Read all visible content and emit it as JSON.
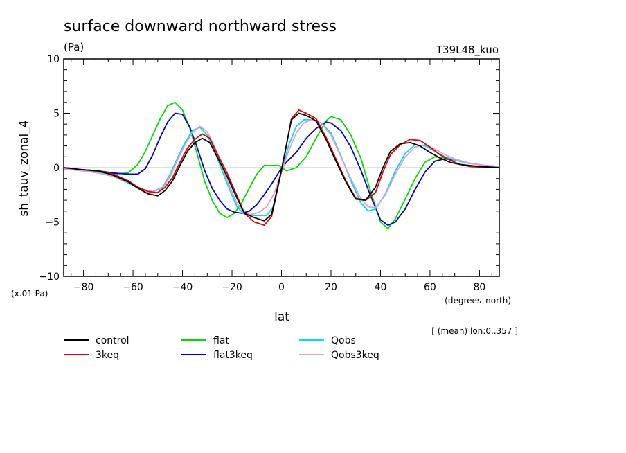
{
  "chart_data": {
    "type": "line",
    "title": "surface downward northward stress",
    "units": "(Pa)",
    "experiment": "T39L48_kuo",
    "ylabel": "sh_tauv_zonal_4",
    "y_scale_note": "(x.01 Pa)",
    "xlabel": "lat",
    "xunits": "(degrees_north)",
    "averaging_note": "[ (mean) lon:0..357 ]",
    "xlim": [
      -88,
      88
    ],
    "ylim": [
      -10,
      10
    ],
    "x_ticks": [
      -80,
      -60,
      -40,
      -20,
      0,
      20,
      40,
      60,
      80
    ],
    "x_tick_labels": [
      "−80",
      "−60",
      "−40",
      "−20",
      "0",
      "20",
      "40",
      "60",
      "80"
    ],
    "y_ticks": [
      -10,
      -5,
      0,
      5,
      10
    ],
    "y_tick_labels": [
      "−10",
      "−5",
      "0",
      "5",
      "10"
    ],
    "series": [
      {
        "name": "control",
        "color": "#000000",
        "x": [
          -88,
          -80,
          -74,
          -68,
          -62,
          -58,
          -54,
          -50,
          -47,
          -44,
          -41,
          -38,
          -35,
          -32,
          -29,
          -26,
          -22,
          -18,
          -15,
          -11,
          -7,
          -4,
          0,
          4,
          7,
          10,
          14,
          18,
          22,
          26,
          30,
          34,
          38,
          41,
          44,
          48,
          52,
          56,
          60,
          64,
          68,
          72,
          76,
          80,
          84,
          88
        ],
        "y": [
          0,
          -0.2,
          -0.3,
          -0.7,
          -1.3,
          -1.9,
          -2.4,
          -2.6,
          -2.1,
          -1.2,
          0.2,
          1.5,
          2.3,
          2.7,
          2.3,
          1.0,
          -0.8,
          -2.8,
          -4.2,
          -4.6,
          -4.9,
          -4.3,
          -0.2,
          4.4,
          5.0,
          4.8,
          4.3,
          2.6,
          0.6,
          -1.3,
          -2.9,
          -3.0,
          -1.8,
          0,
          1.5,
          2.2,
          2.3,
          2.0,
          1.4,
          0.9,
          0.5,
          0.3,
          0.2,
          0.1,
          0.05,
          0
        ]
      },
      {
        "name": "3keq",
        "color": "#e00000",
        "x": [
          -88,
          -80,
          -74,
          -68,
          -62,
          -58,
          -54,
          -50,
          -47,
          -44,
          -41,
          -38,
          -35,
          -32,
          -29,
          -26,
          -22,
          -18,
          -15,
          -11,
          -7,
          -4,
          0,
          4,
          7,
          10,
          14,
          18,
          22,
          26,
          30,
          34,
          38,
          41,
          44,
          48,
          52,
          56,
          60,
          64,
          68,
          72,
          76,
          80,
          84,
          88
        ],
        "y": [
          0,
          -0.2,
          -0.3,
          -0.6,
          -1.2,
          -1.8,
          -2.2,
          -2.3,
          -1.8,
          -0.9,
          0.5,
          1.8,
          2.6,
          3.1,
          2.7,
          1.3,
          -0.5,
          -2.6,
          -4.2,
          -5.0,
          -5.3,
          -4.5,
          -0.3,
          4.5,
          5.3,
          5.0,
          4.5,
          2.8,
          0.8,
          -1.2,
          -2.8,
          -3.0,
          -2.3,
          -0.4,
          1.2,
          2.1,
          2.6,
          2.5,
          1.9,
          1.2,
          0.7,
          0.3,
          0.1,
          0.05,
          0.02,
          0
        ]
      },
      {
        "name": "flat",
        "color": "#00dd00",
        "x": [
          -88,
          -80,
          -74,
          -68,
          -62,
          -58,
          -55,
          -52,
          -49,
          -46,
          -43,
          -40,
          -37,
          -34,
          -31,
          -28,
          -25,
          -22,
          -19,
          -16,
          -13,
          -10,
          -7,
          -4,
          -1,
          2,
          6,
          10,
          14,
          18,
          20,
          24,
          28,
          32,
          36,
          40,
          43,
          46,
          50,
          54,
          58,
          62,
          66,
          70,
          76,
          82,
          88
        ],
        "y": [
          -0.1,
          -0.3,
          -0.4,
          -0.6,
          -0.5,
          0.3,
          1.5,
          3.0,
          4.5,
          5.7,
          6.0,
          5.3,
          3.6,
          1.2,
          -1.3,
          -3.0,
          -4.2,
          -4.6,
          -4.2,
          -3.2,
          -1.9,
          -0.6,
          0.2,
          0.2,
          0.2,
          -0.3,
          0.0,
          1.0,
          2.7,
          4.3,
          4.7,
          4.4,
          3.0,
          0.9,
          -2.2,
          -5.0,
          -5.6,
          -4.7,
          -2.9,
          -1.0,
          0.5,
          1.0,
          0.9,
          0.7,
          0.4,
          0.2,
          0.1
        ]
      },
      {
        "name": "flat3keq",
        "color": "#0000cc",
        "x": [
          -88,
          -80,
          -74,
          -68,
          -62,
          -58,
          -55,
          -52,
          -49,
          -46,
          -43,
          -40,
          -37,
          -34,
          -31,
          -28,
          -25,
          -22,
          -19,
          -16,
          -13,
          -10,
          -7,
          -4,
          -1,
          2,
          6,
          10,
          14,
          18,
          20,
          24,
          28,
          32,
          36,
          40,
          43,
          46,
          50,
          54,
          58,
          62,
          66,
          70,
          76,
          82,
          88
        ],
        "y": [
          -0.1,
          -0.2,
          -0.3,
          -0.5,
          -0.6,
          -0.6,
          -0.1,
          1.2,
          2.8,
          4.2,
          5.0,
          4.9,
          3.7,
          1.8,
          -0.3,
          -1.9,
          -3.0,
          -3.8,
          -4.1,
          -4.2,
          -4.0,
          -3.4,
          -2.5,
          -1.5,
          -0.4,
          0.5,
          1.4,
          2.7,
          3.6,
          4.2,
          4.1,
          3.4,
          1.9,
          -0.2,
          -2.6,
          -4.8,
          -5.3,
          -5.0,
          -3.8,
          -2.0,
          -0.4,
          0.6,
          0.8,
          0.7,
          0.4,
          0.2,
          0.1
        ]
      },
      {
        "name": "Qobs",
        "color": "#00e0e0",
        "x": [
          -88,
          -80,
          -74,
          -68,
          -62,
          -56,
          -52,
          -48,
          -45,
          -42,
          -39,
          -36,
          -33,
          -30,
          -27,
          -24,
          -21,
          -18,
          -15,
          -12,
          -9,
          -6,
          -3,
          0,
          3,
          6,
          9,
          12,
          16,
          20,
          24,
          28,
          32,
          35,
          38,
          42,
          46,
          50,
          54,
          58,
          62,
          66,
          70,
          76,
          82,
          88
        ],
        "y": [
          -0.1,
          -0.3,
          -0.5,
          -0.8,
          -1.4,
          -2.1,
          -2.2,
          -1.8,
          -0.6,
          0.9,
          2.3,
          3.4,
          3.7,
          3.0,
          1.5,
          -0.3,
          -2.0,
          -3.6,
          -4.3,
          -4.4,
          -4.4,
          -4.4,
          -3.5,
          -0.2,
          2.1,
          3.8,
          4.4,
          4.4,
          4.1,
          3.2,
          1.1,
          -1.2,
          -3.2,
          -4.0,
          -3.8,
          -2.4,
          -0.3,
          1.3,
          2.1,
          2.0,
          1.5,
          1.0,
          0.7,
          0.4,
          0.2,
          0.1
        ]
      },
      {
        "name": "Qobs3keq",
        "color": "#d8a0d8",
        "x": [
          -88,
          -80,
          -74,
          -68,
          -62,
          -56,
          -52,
          -48,
          -45,
          -42,
          -39,
          -36,
          -33,
          -30,
          -27,
          -24,
          -21,
          -18,
          -15,
          -12,
          -9,
          -6,
          -3,
          0,
          3,
          6,
          9,
          12,
          16,
          20,
          24,
          28,
          32,
          35,
          38,
          42,
          46,
          50,
          54,
          58,
          62,
          66,
          70,
          76,
          82,
          88
        ],
        "y": [
          -0.1,
          -0.3,
          -0.5,
          -0.8,
          -1.3,
          -2.0,
          -2.2,
          -1.9,
          -0.8,
          0.7,
          2.1,
          3.2,
          3.8,
          3.3,
          1.9,
          0.0,
          -1.7,
          -3.3,
          -4.2,
          -4.3,
          -4.1,
          -3.6,
          -2.4,
          -0.4,
          1.6,
          3.2,
          4.1,
          4.4,
          4.1,
          3.0,
          1.0,
          -1.0,
          -2.8,
          -3.6,
          -3.7,
          -2.5,
          -0.6,
          1.0,
          1.9,
          2.1,
          1.7,
          1.2,
          0.8,
          0.4,
          0.2,
          0.1
        ]
      }
    ]
  }
}
